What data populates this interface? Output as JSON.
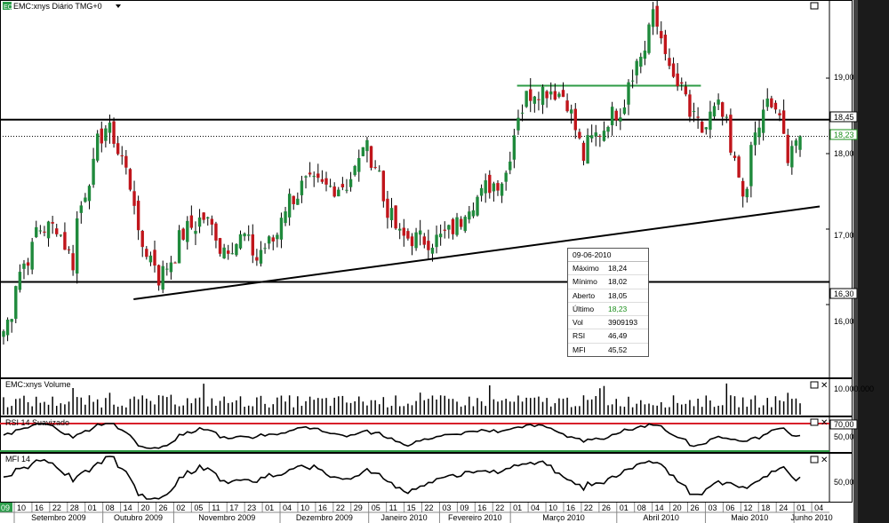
{
  "header": {
    "logo": "EQ",
    "title": "EMC:xnys Diário TMG+0",
    "dropdown_icon": "triangle-down-icon"
  },
  "price_panel": {
    "price_labels": [
      "19,00",
      "18,45",
      "18,23",
      "18,00",
      "17,00",
      "16,30",
      "16,00"
    ],
    "resistance_label": "18,45",
    "support_label": "16,30",
    "last_label": "18,23"
  },
  "info_box": {
    "date": "09-06-2010",
    "rows": [
      {
        "label": "Máximo",
        "value": "18,24"
      },
      {
        "label": "Mínimo",
        "value": "18,02"
      },
      {
        "label": "Aberto",
        "value": "18,05"
      },
      {
        "label": "Último",
        "value": "18,23"
      },
      {
        "label": "Vol",
        "value": "3909193"
      },
      {
        "label": "RSI",
        "value": "46,49"
      },
      {
        "label": "MFI",
        "value": "45,52"
      }
    ]
  },
  "volume_panel": {
    "title": "EMC:xnys Volume",
    "scale_label": "10.000.000"
  },
  "rsi_panel": {
    "title": "RSI 14 Suavizado",
    "scale_labels": [
      "70,00",
      "50,00"
    ]
  },
  "mfi_panel": {
    "title": "MFI 14",
    "scale_labels": [
      "50,00"
    ]
  },
  "x_axis": {
    "first_label": "09",
    "days": [
      "10",
      "16",
      "22",
      "28",
      "01",
      "08",
      "14",
      "20",
      "26",
      "02",
      "05",
      "11",
      "17",
      "23",
      "01",
      "04",
      "10",
      "16",
      "22",
      "29",
      "05",
      "11",
      "15",
      "22",
      "03",
      "09",
      "16",
      "22",
      "01",
      "04",
      "10",
      "16",
      "22",
      "26",
      "01",
      "08",
      "14",
      "20",
      "26",
      "03",
      "06",
      "12",
      "18",
      "24",
      "01",
      "04"
    ],
    "months": [
      "Setembro 2009",
      "Outubro 2009",
      "Novembro 2009",
      "Dezembro 2009",
      "Janeiro 2010",
      "Fevereiro 2010",
      "Março 2010",
      "Abril 2010",
      "Maio 2010",
      "Junho 2010"
    ]
  },
  "colors": {
    "up": "#1f8a3c",
    "down": "#c0151b",
    "resistance": "#000000",
    "hband": "#2e9b45",
    "rsi_high": "#d8202a",
    "rsi_low": "#2e9b45",
    "last": "#1c8f1c"
  },
  "chart_data": {
    "type": "candlestick",
    "title": "EMC:xnys Diário TMG+0",
    "x_range": [
      "2009-09-09",
      "2010-06-09"
    ],
    "y_range": [
      15.5,
      19.9
    ],
    "price_anchors": [
      {
        "date": "2009-09-09",
        "close": 15.65
      },
      {
        "date": "2009-09-15",
        "close": 16.45
      },
      {
        "date": "2009-09-21",
        "close": 17.0
      },
      {
        "date": "2009-09-28",
        "close": 17.05
      },
      {
        "date": "2009-10-02",
        "close": 16.55
      },
      {
        "date": "2009-10-08",
        "close": 17.7
      },
      {
        "date": "2009-10-14",
        "close": 18.35
      },
      {
        "date": "2009-10-20",
        "close": 17.95
      },
      {
        "date": "2009-10-26",
        "close": 16.85
      },
      {
        "date": "2009-11-02",
        "close": 16.35
      },
      {
        "date": "2009-11-05",
        "close": 16.6
      },
      {
        "date": "2009-11-11",
        "close": 17.0
      },
      {
        "date": "2009-11-17",
        "close": 17.15
      },
      {
        "date": "2009-11-23",
        "close": 16.75
      },
      {
        "date": "2009-12-01",
        "close": 16.9
      },
      {
        "date": "2009-12-04",
        "close": 16.6
      },
      {
        "date": "2009-12-10",
        "close": 16.85
      },
      {
        "date": "2009-12-16",
        "close": 17.4
      },
      {
        "date": "2009-12-22",
        "close": 17.6
      },
      {
        "date": "2009-12-29",
        "close": 17.55
      },
      {
        "date": "2010-01-05",
        "close": 17.6
      },
      {
        "date": "2010-01-11",
        "close": 18.15
      },
      {
        "date": "2010-01-15",
        "close": 17.75
      },
      {
        "date": "2010-01-22",
        "close": 16.9
      },
      {
        "date": "2010-02-03",
        "close": 16.85
      },
      {
        "date": "2010-02-09",
        "close": 16.95
      },
      {
        "date": "2010-02-16",
        "close": 17.35
      },
      {
        "date": "2010-02-22",
        "close": 17.55
      },
      {
        "date": "2010-03-01",
        "close": 17.75
      },
      {
        "date": "2010-03-04",
        "close": 18.55
      },
      {
        "date": "2010-03-10",
        "close": 18.85
      },
      {
        "date": "2010-03-16",
        "close": 18.85
      },
      {
        "date": "2010-03-22",
        "close": 18.7
      },
      {
        "date": "2010-03-26",
        "close": 17.95
      },
      {
        "date": "2010-04-01",
        "close": 18.3
      },
      {
        "date": "2010-04-08",
        "close": 18.6
      },
      {
        "date": "2010-04-14",
        "close": 19.2
      },
      {
        "date": "2010-04-20",
        "close": 19.8
      },
      {
        "date": "2010-04-26",
        "close": 19.05
      },
      {
        "date": "2010-05-03",
        "close": 18.5
      },
      {
        "date": "2010-05-06",
        "close": 18.3
      },
      {
        "date": "2010-05-12",
        "close": 18.6
      },
      {
        "date": "2010-05-18",
        "close": 17.85
      },
      {
        "date": "2010-05-21",
        "close": 17.4
      },
      {
        "date": "2010-05-24",
        "close": 18.1
      },
      {
        "date": "2010-05-28",
        "close": 18.65
      },
      {
        "date": "2010-06-01",
        "close": 18.6
      },
      {
        "date": "2010-06-04",
        "close": 18.0
      },
      {
        "date": "2010-06-09",
        "close": 18.23
      }
    ],
    "last_candle": {
      "date": "2010-06-09",
      "open": 18.05,
      "high": 18.24,
      "low": 18.02,
      "close": 18.23,
      "volume": 3909193
    },
    "horizontal_lines": [
      {
        "name": "Resistance",
        "value": 18.45
      },
      {
        "name": "Support",
        "value": 16.3
      },
      {
        "name": "Last",
        "value": 18.23,
        "style": "dotted"
      },
      {
        "name": "Range top",
        "value": 18.9,
        "from": "2010-03-04",
        "to": "2010-05-06"
      }
    ],
    "trendline": {
      "from": {
        "date": "2009-10-26",
        "value": 16.07
      },
      "to": {
        "date": "2010-06-09",
        "value": 17.25
      }
    },
    "volume": {
      "max_label": 10000000
    },
    "rsi": {
      "period": 14,
      "levels": [
        70,
        30
      ],
      "last": 46.49
    },
    "mfi": {
      "period": 14,
      "last": 45.52
    }
  }
}
